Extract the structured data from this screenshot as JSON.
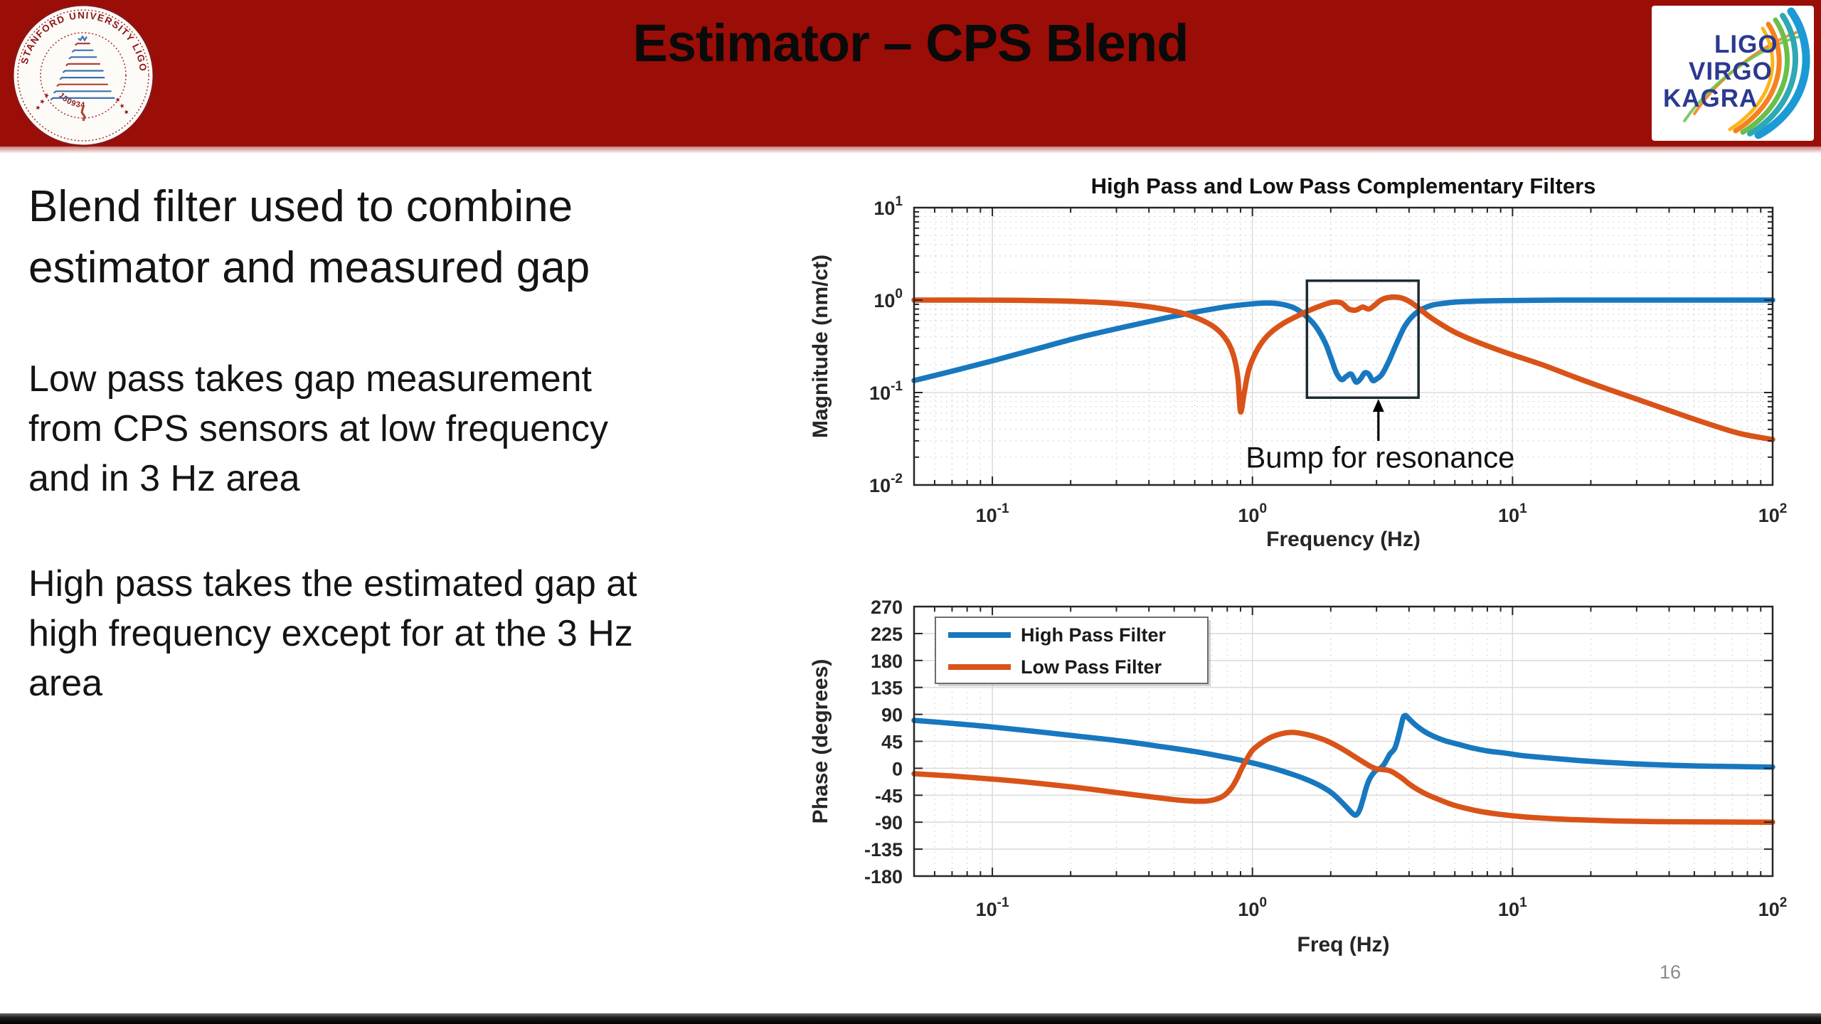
{
  "header": {
    "title": "Estimator – CPS Blend"
  },
  "logos": {
    "seal": {
      "ring_text": "STANFORD UNIVERSITY LIGO GROUP",
      "code": "150934",
      "stars_left": "★ ★ ★",
      "stars_right": "★ ★ ★"
    },
    "lvk": {
      "lines": [
        "LIGO",
        "VIRGO",
        "KAGRA"
      ]
    }
  },
  "body": {
    "para1_lines": [
      "Blend filter used to combine",
      "estimator and measured gap"
    ],
    "para2_lines": [
      "Low pass takes gap measurement",
      "from CPS sensors at low frequency",
      "and in 3 Hz area"
    ],
    "para3_lines": [
      "High pass takes the estimated gap at",
      "high frequency except for at the 3 Hz",
      "area"
    ]
  },
  "footer": {
    "page_number": "16"
  },
  "colors": {
    "header_red": "#9b0d07",
    "high_pass_blue": "#1878bf",
    "low_pass_orange": "#d95319",
    "lvk_text_blue": "#2b3990"
  },
  "chart_data": [
    {
      "type": "line",
      "title": "High Pass and Low Pass Complementary Filters",
      "xlabel": "Frequency (Hz)",
      "ylabel": "Magnitude (nm/ct)",
      "xscale": "log",
      "yscale": "log",
      "xlim": [
        0.05,
        100
      ],
      "ylim": [
        0.01,
        10
      ],
      "grid": true,
      "minor_grid": true,
      "series": [
        {
          "name": "High Pass Filter",
          "color": "#1878bf",
          "points": [
            [
              0.05,
              0.135
            ],
            [
              0.07,
              0.17
            ],
            [
              0.1,
              0.22
            ],
            [
              0.15,
              0.3
            ],
            [
              0.22,
              0.4
            ],
            [
              0.32,
              0.51
            ],
            [
              0.45,
              0.63
            ],
            [
              0.6,
              0.74
            ],
            [
              0.8,
              0.85
            ],
            [
              1.0,
              0.91
            ],
            [
              1.15,
              0.93
            ],
            [
              1.3,
              0.9
            ],
            [
              1.45,
              0.82
            ],
            [
              1.6,
              0.68
            ],
            [
              1.75,
              0.52
            ],
            [
              1.9,
              0.35
            ],
            [
              2.0,
              0.24
            ],
            [
              2.1,
              0.165
            ],
            [
              2.2,
              0.138
            ],
            [
              2.3,
              0.15
            ],
            [
              2.4,
              0.158
            ],
            [
              2.5,
              0.13
            ],
            [
              2.6,
              0.14
            ],
            [
              2.7,
              0.163
            ],
            [
              2.8,
              0.158
            ],
            [
              2.9,
              0.135
            ],
            [
              3.0,
              0.14
            ],
            [
              3.15,
              0.158
            ],
            [
              3.35,
              0.22
            ],
            [
              3.6,
              0.35
            ],
            [
              3.85,
              0.52
            ],
            [
              4.15,
              0.68
            ],
            [
              4.5,
              0.8
            ],
            [
              4.9,
              0.88
            ],
            [
              5.4,
              0.92
            ],
            [
              6,
              0.95
            ],
            [
              7,
              0.97
            ],
            [
              8.5,
              0.985
            ],
            [
              10,
              0.99
            ],
            [
              15,
              1.0
            ],
            [
              30,
              1.0
            ],
            [
              60,
              1.0
            ],
            [
              100,
              1.0
            ]
          ]
        },
        {
          "name": "Low Pass Filter",
          "color": "#d95319",
          "points": [
            [
              0.05,
              1.0
            ],
            [
              0.08,
              1.0
            ],
            [
              0.12,
              0.995
            ],
            [
              0.18,
              0.98
            ],
            [
              0.25,
              0.95
            ],
            [
              0.33,
              0.9
            ],
            [
              0.42,
              0.83
            ],
            [
              0.52,
              0.74
            ],
            [
              0.62,
              0.63
            ],
            [
              0.72,
              0.5
            ],
            [
              0.8,
              0.36
            ],
            [
              0.85,
              0.24
            ],
            [
              0.88,
              0.14
            ],
            [
              0.9,
              0.062
            ],
            [
              0.93,
              0.1
            ],
            [
              0.97,
              0.18
            ],
            [
              1.05,
              0.3
            ],
            [
              1.15,
              0.42
            ],
            [
              1.3,
              0.55
            ],
            [
              1.5,
              0.68
            ],
            [
              1.7,
              0.8
            ],
            [
              1.9,
              0.9
            ],
            [
              2.05,
              0.95
            ],
            [
              2.2,
              0.93
            ],
            [
              2.35,
              0.8
            ],
            [
              2.5,
              0.78
            ],
            [
              2.65,
              0.84
            ],
            [
              2.8,
              0.8
            ],
            [
              2.95,
              0.88
            ],
            [
              3.1,
              0.99
            ],
            [
              3.3,
              1.06
            ],
            [
              3.55,
              1.08
            ],
            [
              3.8,
              1.04
            ],
            [
              4.1,
              0.93
            ],
            [
              4.4,
              0.8
            ],
            [
              4.8,
              0.66
            ],
            [
              5.3,
              0.55
            ],
            [
              6,
              0.45
            ],
            [
              7,
              0.37
            ],
            [
              8.5,
              0.3
            ],
            [
              10,
              0.255
            ],
            [
              13,
              0.2
            ],
            [
              17,
              0.15
            ],
            [
              22,
              0.115
            ],
            [
              30,
              0.085
            ],
            [
              40,
              0.064
            ],
            [
              55,
              0.047
            ],
            [
              75,
              0.036
            ],
            [
              100,
              0.031
            ]
          ]
        }
      ],
      "annotations": {
        "box": {
          "x1": 1.62,
          "y1": 0.088,
          "x2": 4.35,
          "y2": 1.62
        },
        "arrow": {
          "x": 3.05,
          "y_from": 0.03,
          "y_to": 0.085
        },
        "label": {
          "text": "Bump for resonance",
          "x": 3.1,
          "y": 0.0155
        }
      }
    },
    {
      "type": "line",
      "title": "",
      "xlabel": "Freq (Hz)",
      "ylabel": "Phase (degrees)",
      "xscale": "log",
      "yscale": "linear",
      "xlim": [
        0.05,
        100
      ],
      "ylim": [
        -180,
        270
      ],
      "yticks": [
        270,
        225,
        180,
        135,
        90,
        45,
        0,
        -45,
        -90,
        -135,
        -180
      ],
      "grid": true,
      "minor_grid": true,
      "legend": {
        "position": "top-left",
        "entries": [
          "High Pass Filter",
          "Low Pass Filter"
        ]
      },
      "series": [
        {
          "name": "High Pass Filter",
          "color": "#1878bf",
          "points": [
            [
              0.05,
              80
            ],
            [
              0.07,
              75
            ],
            [
              0.1,
              69
            ],
            [
              0.15,
              61
            ],
            [
              0.22,
              53
            ],
            [
              0.32,
              45
            ],
            [
              0.45,
              36
            ],
            [
              0.6,
              28
            ],
            [
              0.8,
              18
            ],
            [
              1.0,
              9
            ],
            [
              1.2,
              0
            ],
            [
              1.4,
              -9
            ],
            [
              1.6,
              -18
            ],
            [
              1.8,
              -28
            ],
            [
              2.0,
              -40
            ],
            [
              2.15,
              -52
            ],
            [
              2.3,
              -65
            ],
            [
              2.42,
              -75
            ],
            [
              2.5,
              -78
            ],
            [
              2.58,
              -70
            ],
            [
              2.66,
              -52
            ],
            [
              2.74,
              -32
            ],
            [
              2.82,
              -18
            ],
            [
              2.92,
              -8
            ],
            [
              3.0,
              -3
            ],
            [
              3.1,
              0
            ],
            [
              3.2,
              6
            ],
            [
              3.3,
              16
            ],
            [
              3.38,
              24
            ],
            [
              3.45,
              28
            ],
            [
              3.52,
              33
            ],
            [
              3.6,
              45
            ],
            [
              3.7,
              65
            ],
            [
              3.8,
              85
            ],
            [
              3.88,
              88
            ],
            [
              3.95,
              85
            ],
            [
              4.1,
              78
            ],
            [
              4.3,
              70
            ],
            [
              4.6,
              61
            ],
            [
              5.0,
              53
            ],
            [
              5.5,
              46
            ],
            [
              6.2,
              40
            ],
            [
              7,
              34
            ],
            [
              8,
              29
            ],
            [
              9.5,
              25
            ],
            [
              11,
              21
            ],
            [
              14,
              17
            ],
            [
              18,
              13
            ],
            [
              25,
              9
            ],
            [
              35,
              6
            ],
            [
              50,
              4
            ],
            [
              70,
              3
            ],
            [
              100,
              2
            ]
          ]
        },
        {
          "name": "Low Pass Filter",
          "color": "#d95319",
          "points": [
            [
              0.05,
              -9
            ],
            [
              0.07,
              -13
            ],
            [
              0.1,
              -18
            ],
            [
              0.15,
              -25
            ],
            [
              0.22,
              -33
            ],
            [
              0.32,
              -42
            ],
            [
              0.45,
              -50
            ],
            [
              0.55,
              -54
            ],
            [
              0.65,
              -55
            ],
            [
              0.72,
              -52
            ],
            [
              0.78,
              -45
            ],
            [
              0.83,
              -33
            ],
            [
              0.87,
              -18
            ],
            [
              0.91,
              0
            ],
            [
              0.95,
              15
            ],
            [
              1.0,
              30
            ],
            [
              1.08,
              42
            ],
            [
              1.18,
              52
            ],
            [
              1.3,
              58
            ],
            [
              1.42,
              60
            ],
            [
              1.55,
              58
            ],
            [
              1.7,
              54
            ],
            [
              1.9,
              47
            ],
            [
              2.1,
              38
            ],
            [
              2.3,
              28
            ],
            [
              2.5,
              18
            ],
            [
              2.7,
              9
            ],
            [
              2.85,
              3
            ],
            [
              3.0,
              -1
            ],
            [
              3.15,
              -2
            ],
            [
              3.3,
              -3
            ],
            [
              3.45,
              -6
            ],
            [
              3.6,
              -11
            ],
            [
              3.8,
              -18
            ],
            [
              4.0,
              -26
            ],
            [
              4.3,
              -35
            ],
            [
              4.7,
              -44
            ],
            [
              5.2,
              -52
            ],
            [
              5.8,
              -60
            ],
            [
              6.5,
              -66
            ],
            [
              7.5,
              -72
            ],
            [
              9,
              -77
            ],
            [
              11,
              -81
            ],
            [
              14,
              -84
            ],
            [
              18,
              -86
            ],
            [
              25,
              -88
            ],
            [
              35,
              -89
            ],
            [
              50,
              -89.5
            ],
            [
              100,
              -90
            ]
          ]
        }
      ]
    }
  ]
}
